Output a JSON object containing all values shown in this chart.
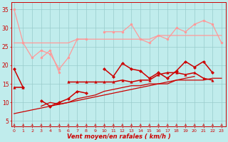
{
  "x": [
    0,
    1,
    2,
    3,
    4,
    5,
    6,
    7,
    8,
    9,
    10,
    11,
    12,
    13,
    14,
    15,
    16,
    17,
    18,
    19,
    20,
    21,
    22,
    23
  ],
  "light_top": [
    35,
    26,
    null,
    null,
    null,
    null,
    null,
    null,
    null,
    null,
    null,
    null,
    null,
    null,
    null,
    null,
    null,
    null,
    null,
    null,
    null,
    null,
    null,
    null
  ],
  "light_upper": [
    null,
    26,
    22,
    24,
    23,
    19,
    22,
    27,
    27,
    null,
    29,
    29,
    29,
    31,
    27,
    26,
    28,
    27,
    30,
    29,
    31,
    32,
    31,
    26
  ],
  "light_mid": [
    null,
    null,
    null,
    22,
    24,
    18,
    null,
    null,
    null,
    null,
    null,
    null,
    null,
    null,
    null,
    null,
    null,
    null,
    null,
    null,
    null,
    null,
    null,
    null
  ],
  "light_trend": [
    26,
    26,
    26,
    26,
    26,
    26,
    26,
    27,
    27,
    27,
    27,
    27,
    27,
    27,
    27,
    27,
    28,
    28,
    28,
    28,
    28,
    28,
    28,
    28
  ],
  "dark_jagged": [
    19,
    14,
    null,
    10.5,
    9,
    10,
    11,
    13,
    12.5,
    null,
    19,
    17,
    20.5,
    19,
    18.5,
    16.5,
    18,
    16.5,
    18.5,
    21,
    19.5,
    21,
    18,
    null
  ],
  "dark_upper_flat": [
    14,
    14,
    null,
    null,
    null,
    null,
    15.5,
    15.5,
    15.5,
    15.5,
    15.5,
    15.5,
    16,
    15.5,
    16,
    16,
    17.5,
    18,
    18,
    17.5,
    18,
    16.5,
    16,
    null
  ],
  "dark_trend1": [
    7,
    7.5,
    8,
    8.5,
    9,
    9.5,
    10,
    10.5,
    11,
    11.5,
    12,
    12.5,
    13,
    13.5,
    14,
    14.5,
    15,
    15.5,
    16,
    16.5,
    17,
    null,
    null,
    null
  ],
  "dark_trend2": [
    null,
    null,
    null,
    9,
    10,
    9.5,
    10,
    11,
    11.5,
    12,
    13,
    13.5,
    14,
    14.5,
    14.5,
    15,
    15,
    15,
    16,
    16,
    16,
    16,
    16.5,
    16.5
  ],
  "background": "#c0ecec",
  "grid_color": "#99cccc",
  "light_color": "#ff9999",
  "dark_color": "#cc0000",
  "xlabel": "Vent moyen/en rafales ( km/h )",
  "yticks": [
    5,
    10,
    15,
    20,
    25,
    30,
    35
  ],
  "xlim": [
    -0.3,
    23.5
  ],
  "ylim": [
    3.5,
    37
  ]
}
